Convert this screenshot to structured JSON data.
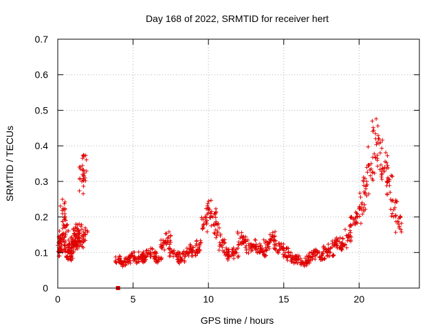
{
  "chart_data": {
    "type": "scatter",
    "title": "Day 168 of 2022, SRMTID for receiver hert",
    "xlabel": "GPS time / hours",
    "ylabel": "SRMTID / TECUs",
    "xlim": [
      0,
      24
    ],
    "ylim": [
      0,
      0.7
    ],
    "x_ticks": [
      0,
      5,
      10,
      15,
      20
    ],
    "y_ticks": [
      0,
      0.1,
      0.2,
      0.3,
      0.4,
      0.5,
      0.6,
      0.7
    ],
    "x_tick_labels": [
      "0",
      "5",
      "10",
      "15",
      "20"
    ],
    "y_tick_labels": [
      "0",
      "0.1",
      "0.2",
      "0.3",
      "0.4",
      "0.5",
      "0.6",
      "0.7"
    ],
    "grid": true,
    "marker": "+",
    "color": "#e00000",
    "outlier": {
      "x": 4.0,
      "y": 0.0
    },
    "series": [
      {
        "name": "SRMTID",
        "x": [
          0.0,
          0.1,
          0.2,
          0.3,
          0.4,
          0.5,
          0.6,
          0.7,
          0.8,
          0.9,
          1.0,
          1.1,
          1.2,
          1.3,
          1.4,
          1.5,
          1.6,
          1.7,
          1.8,
          4.0,
          4.3,
          4.6,
          4.9,
          5.2,
          5.5,
          5.8,
          6.1,
          6.4,
          6.7,
          7.0,
          7.3,
          7.6,
          7.9,
          8.2,
          8.5,
          8.8,
          9.1,
          9.4,
          9.7,
          10.0,
          10.3,
          10.6,
          10.9,
          11.2,
          11.5,
          11.8,
          12.1,
          12.4,
          12.7,
          13.0,
          13.3,
          13.6,
          13.9,
          14.2,
          14.5,
          14.8,
          15.1,
          15.4,
          15.7,
          16.0,
          16.3,
          16.6,
          16.9,
          17.2,
          17.5,
          17.8,
          18.1,
          18.4,
          18.7,
          19.0,
          19.3,
          19.6,
          19.9,
          20.2,
          20.5,
          20.8,
          21.1,
          21.4,
          21.7,
          22.0,
          22.3,
          22.6
        ],
        "y": [
          0.12,
          0.1,
          0.13,
          0.15,
          0.22,
          0.17,
          0.12,
          0.1,
          0.09,
          0.11,
          0.13,
          0.12,
          0.15,
          0.14,
          0.16,
          0.13,
          0.3,
          0.33,
          0.15,
          0.08,
          0.07,
          0.08,
          0.09,
          0.08,
          0.09,
          0.08,
          0.1,
          0.09,
          0.08,
          0.12,
          0.14,
          0.1,
          0.09,
          0.08,
          0.1,
          0.11,
          0.1,
          0.12,
          0.18,
          0.22,
          0.2,
          0.16,
          0.12,
          0.1,
          0.09,
          0.1,
          0.14,
          0.13,
          0.11,
          0.12,
          0.11,
          0.1,
          0.12,
          0.14,
          0.12,
          0.11,
          0.1,
          0.09,
          0.08,
          0.08,
          0.07,
          0.08,
          0.09,
          0.1,
          0.09,
          0.11,
          0.1,
          0.12,
          0.13,
          0.12,
          0.15,
          0.18,
          0.2,
          0.24,
          0.3,
          0.35,
          0.42,
          0.38,
          0.34,
          0.3,
          0.22,
          0.18
        ]
      }
    ]
  }
}
